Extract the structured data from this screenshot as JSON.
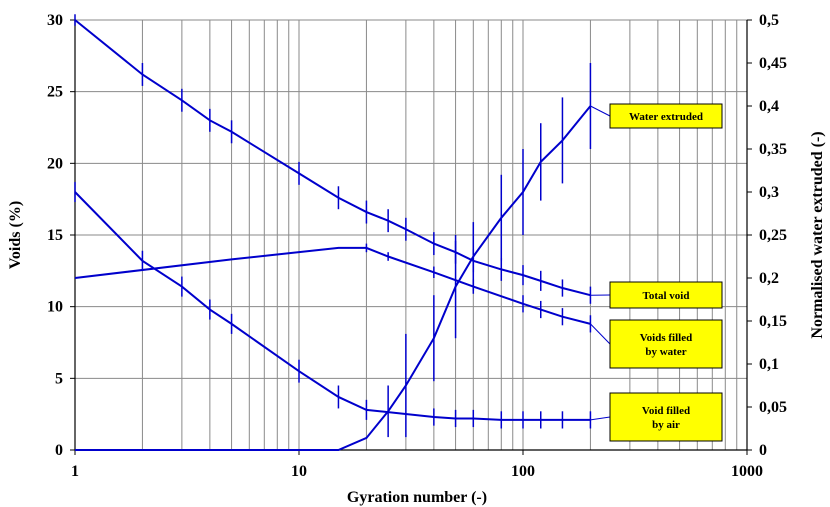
{
  "chart_data": {
    "type": "line",
    "x_scale": "log",
    "xlim": [
      1,
      1000
    ],
    "ylim_left": [
      0,
      30
    ],
    "ylim_right": [
      0,
      0.5
    ],
    "x_ticks": [
      "1",
      "10",
      "100",
      "1000"
    ],
    "y_left_ticks": [
      "0",
      "5",
      "10",
      "15",
      "20",
      "25",
      "30"
    ],
    "y_right_ticks": [
      "0",
      "0,05",
      "0,1",
      "0,15",
      "0,2",
      "0,25",
      "0,3",
      "0,35",
      "0,4",
      "0,45",
      "0,5"
    ],
    "xlabel": "Gyration number (-)",
    "ylabel_left": "Voids (%)",
    "ylabel_right": "Normalised water extruded (-)",
    "grid": true,
    "line_color": "#0000cc",
    "callout_fill": "#ffff00",
    "series": [
      {
        "name": "Total void",
        "axis": "left",
        "points": [
          {
            "x": 1,
            "y": 30.0,
            "err": 0.4
          },
          {
            "x": 2,
            "y": 26.2,
            "err": 0.8
          },
          {
            "x": 3,
            "y": 24.4,
            "err": 0.8
          },
          {
            "x": 4,
            "y": 23.0,
            "err": 0.8
          },
          {
            "x": 5,
            "y": 22.2,
            "err": 0.8
          },
          {
            "x": 10,
            "y": 19.3,
            "err": 0.8
          },
          {
            "x": 15,
            "y": 17.6,
            "err": 0.8
          },
          {
            "x": 20,
            "y": 16.6,
            "err": 0.8
          },
          {
            "x": 25,
            "y": 16.0,
            "err": 0.8
          },
          {
            "x": 30,
            "y": 15.4,
            "err": 0.8
          },
          {
            "x": 40,
            "y": 14.4,
            "err": 0.8
          },
          {
            "x": 50,
            "y": 13.8,
            "err": 0.8
          },
          {
            "x": 60,
            "y": 13.2,
            "err": 0.8
          },
          {
            "x": 80,
            "y": 12.6,
            "err": 0.8
          },
          {
            "x": 100,
            "y": 12.2,
            "err": 0.7
          },
          {
            "x": 120,
            "y": 11.8,
            "err": 0.7
          },
          {
            "x": 150,
            "y": 11.3,
            "err": 0.6
          },
          {
            "x": 200,
            "y": 10.8,
            "err": 0.6
          }
        ]
      },
      {
        "name": "Voids filled by water",
        "axis": "left",
        "points": [
          {
            "x": 1,
            "y": 12.0,
            "err": 0
          },
          {
            "x": 5,
            "y": 13.3,
            "err": 0
          },
          {
            "x": 15,
            "y": 14.1,
            "err": 0
          },
          {
            "x": 20,
            "y": 14.1,
            "err": 0.3
          },
          {
            "x": 25,
            "y": 13.5,
            "err": 0.3
          },
          {
            "x": 40,
            "y": 12.4,
            "err": 0.4
          },
          {
            "x": 60,
            "y": 11.4,
            "err": 0.5
          },
          {
            "x": 100,
            "y": 10.2,
            "err": 0.6
          },
          {
            "x": 120,
            "y": 9.8,
            "err": 0.6
          },
          {
            "x": 150,
            "y": 9.3,
            "err": 0.6
          },
          {
            "x": 200,
            "y": 8.8,
            "err": 0.6
          }
        ]
      },
      {
        "name": "Void filled by air",
        "axis": "left",
        "points": [
          {
            "x": 1,
            "y": 18.0,
            "err": 0.7
          },
          {
            "x": 2,
            "y": 13.2,
            "err": 0.7
          },
          {
            "x": 3,
            "y": 11.4,
            "err": 0.7
          },
          {
            "x": 4,
            "y": 9.8,
            "err": 0.7
          },
          {
            "x": 5,
            "y": 8.8,
            "err": 0.7
          },
          {
            "x": 10,
            "y": 5.5,
            "err": 0.8
          },
          {
            "x": 15,
            "y": 3.7,
            "err": 0.8
          },
          {
            "x": 20,
            "y": 2.8,
            "err": 0.7
          },
          {
            "x": 40,
            "y": 2.3,
            "err": 0.6
          },
          {
            "x": 50,
            "y": 2.2,
            "err": 0.6
          },
          {
            "x": 60,
            "y": 2.2,
            "err": 0.6
          },
          {
            "x": 80,
            "y": 2.1,
            "err": 0.6
          },
          {
            "x": 100,
            "y": 2.1,
            "err": 0.6
          },
          {
            "x": 120,
            "y": 2.1,
            "err": 0.6
          },
          {
            "x": 150,
            "y": 2.1,
            "err": 0.6
          },
          {
            "x": 200,
            "y": 2.1,
            "err": 0.6
          }
        ]
      },
      {
        "name": "Water extruded",
        "axis": "right",
        "points": [
          {
            "x": 1,
            "y": 0.0,
            "err": 0
          },
          {
            "x": 15,
            "y": 0.0,
            "err": 0
          },
          {
            "x": 20,
            "y": 0.014,
            "err": 0
          },
          {
            "x": 25,
            "y": 0.045,
            "err": 0.03
          },
          {
            "x": 30,
            "y": 0.075,
            "err": 0.06
          },
          {
            "x": 40,
            "y": 0.13,
            "err": 0.05
          },
          {
            "x": 50,
            "y": 0.19,
            "err": 0.06
          },
          {
            "x": 60,
            "y": 0.225,
            "err": 0.04
          },
          {
            "x": 80,
            "y": 0.27,
            "err": 0.05
          },
          {
            "x": 100,
            "y": 0.3,
            "err": 0.05
          },
          {
            "x": 120,
            "y": 0.335,
            "err": 0.045
          },
          {
            "x": 150,
            "y": 0.36,
            "err": 0.05
          },
          {
            "x": 200,
            "y": 0.4,
            "err": 0.05
          }
        ]
      }
    ],
    "callouts": [
      {
        "series": "Water extruded",
        "lines": [
          "Water extruded"
        ]
      },
      {
        "series": "Total void",
        "lines": [
          "Total void"
        ]
      },
      {
        "series": "Voids filled by water",
        "lines": [
          "Voids filled",
          "by water"
        ]
      },
      {
        "series": "Void filled by air",
        "lines": [
          "Void filled",
          "by air"
        ]
      }
    ]
  }
}
